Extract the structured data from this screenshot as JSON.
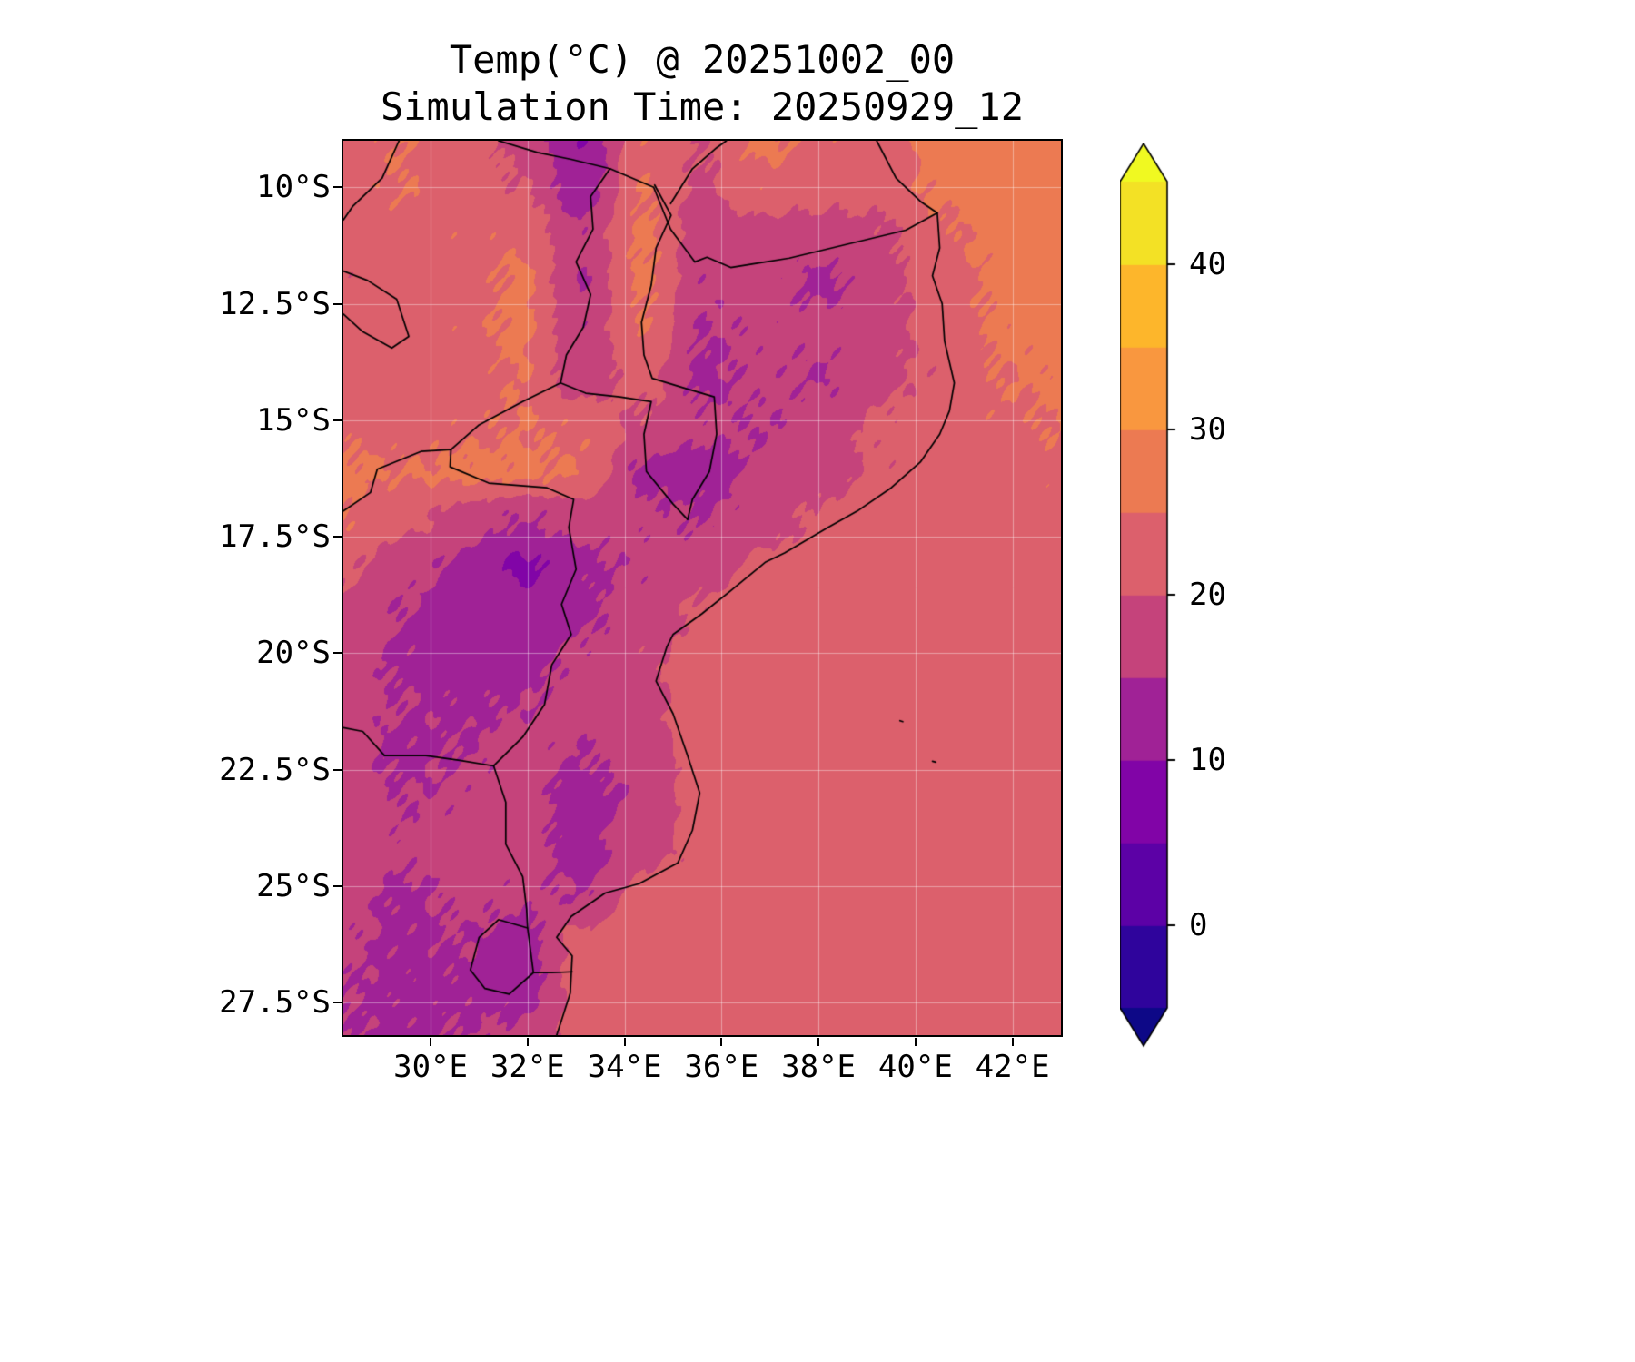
{
  "title": {
    "line1": "Temp(°C) @ 20251002_00",
    "line2": "Simulation Time: 20250929_12"
  },
  "axes": {
    "lon_range": [
      28.2,
      43.0
    ],
    "lat_range": [
      9.0,
      28.2
    ],
    "x": {
      "ticks": [
        {
          "label": "30°E",
          "value": 30
        },
        {
          "label": "32°E",
          "value": 32
        },
        {
          "label": "34°E",
          "value": 34
        },
        {
          "label": "36°E",
          "value": 36
        },
        {
          "label": "38°E",
          "value": 38
        },
        {
          "label": "40°E",
          "value": 40
        },
        {
          "label": "42°E",
          "value": 42
        }
      ]
    },
    "y": {
      "ticks": [
        {
          "label": "10°S",
          "value": 10
        },
        {
          "label": "12.5°S",
          "value": 12.5
        },
        {
          "label": "15°S",
          "value": 15
        },
        {
          "label": "17.5°S",
          "value": 17.5
        },
        {
          "label": "20°S",
          "value": 20
        },
        {
          "label": "22.5°S",
          "value": 22.5
        },
        {
          "label": "25°S",
          "value": 25
        },
        {
          "label": "27.5°S",
          "value": 27.5
        }
      ]
    },
    "gridline_color": "rgba(255,255,255,0.4)"
  },
  "colorbar": {
    "levels": [
      -5,
      0,
      5,
      10,
      15,
      20,
      25,
      30,
      35,
      40,
      45
    ],
    "colors": [
      "#2f049c",
      "#5c01a6",
      "#8104a7",
      "#a02296",
      "#c5437b",
      "#dc606c",
      "#ec7a52",
      "#f9973f",
      "#fdb62b",
      "#f3e125"
    ],
    "under": "#0d0887",
    "over": "#f0f921",
    "outline": "#000000",
    "ticks": [
      {
        "label": "0",
        "value": 0
      },
      {
        "label": "10",
        "value": 10
      },
      {
        "label": "20",
        "value": 20
      },
      {
        "label": "30",
        "value": 30
      },
      {
        "label": "40",
        "value": 40
      }
    ]
  },
  "chart_data": {
    "type": "heatmap",
    "title": "Temp(°C) @ 20251002_00",
    "subtitle": "Simulation Time: 20250929_12",
    "variable": "Temp(°C)",
    "colormap": "plasma (discrete, 5°C bins, extend both)",
    "levels": [
      -5,
      0,
      5,
      10,
      15,
      20,
      25,
      30,
      35,
      40,
      45
    ],
    "legend_position": "right colorbar",
    "lons": [
      28.2,
      29.4,
      30.7,
      31.9,
      33.1,
      34.4,
      35.6,
      36.8,
      38.1,
      39.3,
      40.5,
      41.8,
      43.0
    ],
    "lats": [
      9.0,
      10.0,
      11.0,
      12.0,
      13.0,
      14.1,
      15.1,
      16.1,
      17.1,
      18.1,
      19.1,
      20.1,
      21.1,
      22.1,
      23.1,
      24.2,
      25.2,
      26.2,
      27.2,
      28.2
    ],
    "values_c": [
      [
        23,
        25,
        22,
        19,
        10,
        24,
        20,
        26,
        24,
        22,
        27,
        28,
        29
      ],
      [
        23,
        25,
        23,
        20,
        12,
        25,
        19,
        24,
        22,
        22,
        26,
        27,
        28
      ],
      [
        22,
        23,
        24,
        24,
        16,
        26,
        17,
        18,
        18,
        19,
        24,
        27,
        27
      ],
      [
        21,
        22,
        23,
        26,
        15,
        26,
        16,
        17,
        14,
        18,
        23,
        26,
        27
      ],
      [
        22,
        22,
        24,
        26,
        16,
        25,
        15,
        16,
        16,
        18,
        22,
        26,
        27
      ],
      [
        22,
        23,
        23,
        25,
        17,
        22,
        14,
        16,
        15,
        19,
        21,
        25,
        26
      ],
      [
        24,
        23,
        24,
        25,
        24,
        19,
        16,
        15,
        17,
        21,
        23,
        24,
        25
      ],
      [
        26,
        25,
        26,
        26,
        25,
        14,
        13,
        16,
        18,
        21,
        23,
        23,
        24
      ],
      [
        25,
        22,
        18,
        15,
        17,
        16,
        15,
        17,
        21,
        23,
        23,
        23,
        23
      ],
      [
        21,
        17,
        14,
        9,
        14,
        16,
        17,
        21,
        23,
        23,
        23,
        23,
        23
      ],
      [
        19,
        15,
        13,
        12,
        14,
        17,
        21,
        23,
        23,
        23,
        23,
        23,
        23
      ],
      [
        18,
        14,
        13,
        13,
        16,
        19,
        22,
        23,
        23,
        23,
        23,
        23,
        23
      ],
      [
        17,
        15,
        14,
        15,
        17,
        18,
        23,
        23,
        23,
        23,
        23,
        23,
        23
      ],
      [
        17,
        14,
        15,
        17,
        15,
        17,
        23,
        23,
        23,
        23,
        23,
        23,
        23
      ],
      [
        18,
        15,
        16,
        17,
        13,
        16,
        23,
        23,
        23,
        23,
        23,
        23,
        23
      ],
      [
        18,
        16,
        17,
        17,
        13,
        18,
        22,
        23,
        23,
        23,
        23,
        23,
        23
      ],
      [
        17,
        14,
        16,
        16,
        15,
        22,
        23,
        23,
        23,
        23,
        23,
        23,
        23
      ],
      [
        16,
        14,
        15,
        13,
        22,
        23,
        23,
        23,
        23,
        23,
        23,
        23,
        23
      ],
      [
        15,
        14,
        14,
        13,
        22,
        23,
        23,
        23,
        23,
        23,
        23,
        23,
        23
      ],
      [
        15,
        14,
        15,
        16,
        22,
        23,
        23,
        23,
        23,
        23,
        23,
        23,
        23
      ]
    ]
  },
  "map_overlays": {
    "border_color": "#000000",
    "borders": {
      "coastline": [
        [
          39.2,
          9.0
        ],
        [
          39.6,
          9.8
        ],
        [
          40.1,
          10.3
        ],
        [
          40.45,
          10.55
        ],
        [
          40.5,
          11.3
        ],
        [
          40.35,
          11.9
        ],
        [
          40.55,
          12.5
        ],
        [
          40.6,
          13.3
        ],
        [
          40.8,
          14.2
        ],
        [
          40.7,
          14.8
        ],
        [
          40.5,
          15.3
        ],
        [
          40.1,
          15.9
        ],
        [
          39.5,
          16.45
        ],
        [
          38.8,
          16.95
        ],
        [
          38.2,
          17.3
        ],
        [
          37.3,
          17.85
        ],
        [
          36.9,
          18.05
        ],
        [
          36.2,
          18.65
        ],
        [
          35.6,
          19.15
        ],
        [
          35.0,
          19.6
        ],
        [
          34.87,
          19.87
        ],
        [
          34.65,
          20.6
        ],
        [
          35.0,
          21.3
        ],
        [
          35.3,
          22.2
        ],
        [
          35.55,
          23.0
        ],
        [
          35.4,
          23.8
        ],
        [
          35.1,
          24.5
        ],
        [
          34.3,
          24.95
        ],
        [
          33.6,
          25.15
        ],
        [
          32.9,
          25.65
        ],
        [
          32.6,
          26.1
        ],
        [
          32.92,
          26.5
        ],
        [
          32.88,
          27.3
        ],
        [
          32.6,
          28.2
        ]
      ],
      "tz_mz_ruvuma": [
        [
          40.45,
          10.55
        ],
        [
          39.8,
          10.92
        ],
        [
          39.0,
          11.12
        ],
        [
          38.2,
          11.32
        ],
        [
          37.4,
          11.52
        ],
        [
          36.8,
          11.62
        ],
        [
          36.19,
          11.72
        ],
        [
          35.7,
          11.5
        ],
        [
          35.45,
          11.6
        ]
      ],
      "tz_zm_north": [
        [
          35.45,
          11.6
        ],
        [
          34.95,
          10.9
        ],
        [
          34.6,
          10.0
        ],
        [
          33.7,
          9.6
        ],
        [
          32.9,
          9.4
        ],
        [
          32.2,
          9.25
        ],
        [
          31.4,
          9.0
        ]
      ],
      "tz_mw_ne": [
        [
          34.95,
          10.35
        ],
        [
          35.4,
          9.6
        ],
        [
          35.9,
          9.15
        ],
        [
          36.1,
          9.0
        ]
      ],
      "mw_west": [
        [
          33.7,
          9.6
        ],
        [
          33.3,
          10.2
        ],
        [
          33.35,
          10.9
        ],
        [
          33.0,
          11.6
        ],
        [
          33.3,
          12.3
        ],
        [
          33.15,
          13.0
        ],
        [
          32.8,
          13.6
        ],
        [
          32.68,
          14.2
        ],
        [
          33.2,
          14.42
        ],
        [
          33.9,
          14.5
        ],
        [
          34.55,
          14.6
        ],
        [
          34.4,
          15.3
        ],
        [
          34.45,
          16.1
        ],
        [
          35.0,
          16.8
        ],
        [
          35.3,
          17.13
        ]
      ],
      "mw_mz_east": [
        [
          34.62,
          9.95
        ],
        [
          34.96,
          10.6
        ],
        [
          34.65,
          11.3
        ],
        [
          34.55,
          12.1
        ],
        [
          34.35,
          12.9
        ],
        [
          34.4,
          13.6
        ],
        [
          34.57,
          14.1
        ],
        [
          35.2,
          14.3
        ],
        [
          35.85,
          14.5
        ],
        [
          35.9,
          15.3
        ],
        [
          35.75,
          16.1
        ],
        [
          35.4,
          16.7
        ],
        [
          35.3,
          17.13
        ]
      ],
      "zm_mz": [
        [
          32.68,
          14.2
        ],
        [
          31.9,
          14.6
        ],
        [
          31.0,
          15.1
        ],
        [
          30.42,
          15.63
        ]
      ],
      "zm_zw_zambezi": [
        [
          30.42,
          15.63
        ],
        [
          29.8,
          15.67
        ],
        [
          28.9,
          16.05
        ],
        [
          28.76,
          16.55
        ],
        [
          28.2,
          16.95
        ]
      ],
      "zw_mz": [
        [
          30.42,
          15.63
        ],
        [
          30.4,
          16.0
        ],
        [
          31.2,
          16.35
        ],
        [
          32.4,
          16.45
        ],
        [
          32.95,
          16.7
        ],
        [
          32.85,
          17.3
        ],
        [
          33.0,
          18.2
        ],
        [
          32.7,
          18.95
        ],
        [
          32.9,
          19.6
        ],
        [
          32.5,
          20.25
        ],
        [
          32.35,
          21.1
        ],
        [
          31.9,
          21.8
        ],
        [
          31.3,
          22.42
        ]
      ],
      "sa_zw_limpopo": [
        [
          29.05,
          22.2
        ],
        [
          29.9,
          22.2
        ],
        [
          30.6,
          22.3
        ],
        [
          31.3,
          22.42
        ]
      ],
      "bw_sa": [
        [
          28.2,
          21.6
        ],
        [
          28.6,
          21.68
        ],
        [
          29.05,
          22.2
        ]
      ],
      "sa_mz": [
        [
          31.3,
          22.42
        ],
        [
          31.55,
          23.2
        ],
        [
          31.55,
          24.1
        ],
        [
          31.9,
          24.8
        ],
        [
          31.98,
          25.5
        ],
        [
          32.0,
          25.9
        ]
      ],
      "swaziland": [
        [
          32.0,
          25.9
        ],
        [
          31.4,
          25.72
        ],
        [
          31.0,
          26.1
        ],
        [
          30.82,
          26.8
        ],
        [
          31.12,
          27.2
        ],
        [
          31.62,
          27.32
        ],
        [
          32.12,
          26.86
        ],
        [
          32.0,
          25.9
        ]
      ],
      "sa_mz_south": [
        [
          32.12,
          26.86
        ],
        [
          32.5,
          26.86
        ],
        [
          32.92,
          26.84
        ]
      ],
      "drc_pedicle": [
        [
          28.2,
          11.8
        ],
        [
          28.7,
          12.0
        ],
        [
          29.3,
          12.4
        ],
        [
          29.55,
          13.2
        ],
        [
          29.2,
          13.45
        ],
        [
          28.6,
          13.1
        ],
        [
          28.2,
          12.72
        ]
      ],
      "zm_drc_nw": [
        [
          29.35,
          9.0
        ],
        [
          29.0,
          9.8
        ],
        [
          28.4,
          10.4
        ],
        [
          28.2,
          10.7
        ]
      ],
      "island_dot_1": [
        [
          39.68,
          21.45
        ],
        [
          39.74,
          21.47
        ]
      ],
      "island_dot_2": [
        [
          40.35,
          22.32
        ],
        [
          40.42,
          22.34
        ]
      ]
    }
  }
}
